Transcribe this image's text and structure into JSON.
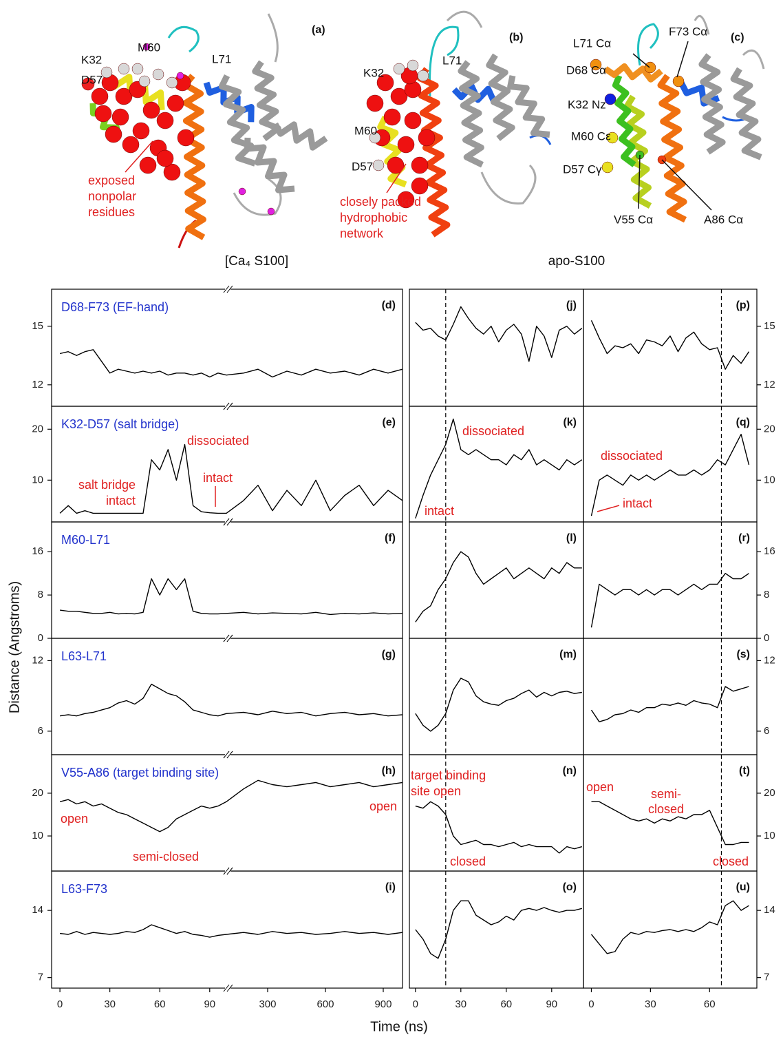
{
  "structures": {
    "panels": [
      {
        "label": "(a)",
        "residues": [
          "K32",
          "M60",
          "D57",
          "L71"
        ],
        "annotation": [
          "exposed",
          "nonpolar",
          "residues"
        ]
      },
      {
        "label": "(b)",
        "residues": [
          "K32",
          "L71",
          "M60",
          "D57"
        ],
        "annotation": [
          "closely packed",
          "hydrophobic",
          "network"
        ]
      },
      {
        "label": "(c)",
        "residues": [
          "L71 Cα",
          "F73 Cα",
          "D68 Cα",
          "K32 Nz",
          "M60 Cε",
          "D57 Cγ",
          "V55 Cα",
          "A86 Cα"
        ]
      }
    ],
    "captions": [
      "[Ca₄ S100]",
      "apo-S100"
    ]
  },
  "axis_labels": {
    "y": "Distance (Angstroms)",
    "x": "Time (ns)"
  },
  "chart_data": [
    {
      "type": "line",
      "title": "D68-F73 (EF-hand)",
      "label": "(d)",
      "color": "#000000",
      "x": [
        0,
        5,
        10,
        15,
        20,
        25,
        30,
        35,
        40,
        45,
        50,
        55,
        60,
        65,
        70,
        75,
        80,
        85,
        90,
        95,
        100,
        175,
        250,
        325,
        400,
        475,
        550,
        625,
        700,
        775,
        850,
        925,
        1000
      ],
      "values": [
        13.6,
        13.7,
        13.5,
        13.7,
        13.8,
        13.2,
        12.6,
        12.8,
        12.7,
        12.6,
        12.7,
        12.6,
        12.7,
        12.5,
        12.6,
        12.6,
        12.5,
        12.6,
        12.4,
        12.6,
        12.5,
        12.6,
        12.8,
        12.4,
        12.7,
        12.5,
        12.8,
        12.6,
        12.7,
        12.5,
        12.8,
        12.6,
        12.8
      ],
      "xlim": [
        -5,
        1000
      ],
      "xbreak": 100,
      "ylim": [
        10.9,
        16.9
      ],
      "yticks": [
        12,
        15
      ]
    },
    {
      "type": "line",
      "title": "K32-D57 (salt bridge)",
      "label": "(e)",
      "color": "#000000",
      "x": [
        0,
        5,
        10,
        15,
        20,
        25,
        30,
        35,
        40,
        45,
        50,
        55,
        60,
        65,
        70,
        75,
        80,
        85,
        90,
        95,
        100,
        175,
        250,
        325,
        400,
        475,
        550,
        625,
        700,
        775,
        850,
        925,
        1000
      ],
      "values": [
        3.5,
        5,
        3.5,
        4,
        3.5,
        3.5,
        3.5,
        3.5,
        3.5,
        3.5,
        3.5,
        14,
        12,
        16,
        10,
        17,
        5,
        3.8,
        3.6,
        3.5,
        3.5,
        6,
        9,
        4,
        8,
        5,
        10,
        4,
        7,
        9,
        5,
        8,
        6
      ],
      "xlim": [
        -5,
        1000
      ],
      "xbreak": 100,
      "ylim": [
        1.8,
        24.5
      ],
      "yticks": [
        10,
        20
      ],
      "annotations": [
        [
          "salt bridge",
          "intact"
        ],
        [
          "dissociated"
        ],
        [
          "intact"
        ]
      ]
    },
    {
      "type": "line",
      "title": "M60-L71",
      "label": "(f)",
      "color": "#000000",
      "x": [
        0,
        5,
        10,
        15,
        20,
        25,
        30,
        35,
        40,
        45,
        50,
        55,
        60,
        65,
        70,
        75,
        80,
        85,
        90,
        95,
        100,
        175,
        250,
        325,
        400,
        475,
        550,
        625,
        700,
        775,
        850,
        925,
        1000
      ],
      "values": [
        5.2,
        5,
        5,
        4.8,
        4.6,
        4.6,
        4.8,
        4.5,
        4.6,
        4.5,
        4.8,
        11,
        8,
        11,
        9,
        11,
        5,
        4.6,
        4.5,
        4.5,
        4.6,
        4.8,
        4.5,
        4.7,
        4.6,
        4.5,
        4.8,
        4.4,
        4.6,
        4.5,
        4.7,
        4.5,
        4.6
      ],
      "xlim": [
        -5,
        1000
      ],
      "xbreak": 100,
      "ylim": [
        0,
        21.5
      ],
      "yticks": [
        0,
        8,
        16
      ]
    },
    {
      "type": "line",
      "title": "L63-L71",
      "label": "(g)",
      "color": "#000000",
      "x": [
        0,
        5,
        10,
        15,
        20,
        25,
        30,
        35,
        40,
        45,
        50,
        55,
        60,
        65,
        70,
        75,
        80,
        85,
        90,
        95,
        100,
        175,
        250,
        325,
        400,
        475,
        550,
        625,
        700,
        775,
        850,
        925,
        1000
      ],
      "values": [
        7.3,
        7.4,
        7.3,
        7.5,
        7.6,
        7.8,
        8.0,
        8.4,
        8.6,
        8.3,
        8.8,
        10.0,
        9.6,
        9.2,
        9.0,
        8.5,
        7.8,
        7.6,
        7.4,
        7.3,
        7.5,
        7.6,
        7.4,
        7.7,
        7.5,
        7.6,
        7.3,
        7.5,
        7.6,
        7.4,
        7.5,
        7.3,
        7.4
      ],
      "xlim": [
        -5,
        1000
      ],
      "xbreak": 100,
      "ylim": [
        4,
        13.9
      ],
      "yticks": [
        6,
        12
      ]
    },
    {
      "type": "line",
      "title": "V55-A86 (target binding site)",
      "label": "(h)",
      "color": "#000000",
      "x": [
        0,
        5,
        10,
        15,
        20,
        25,
        30,
        35,
        40,
        45,
        50,
        55,
        60,
        65,
        70,
        75,
        80,
        85,
        90,
        95,
        100,
        175,
        250,
        325,
        400,
        475,
        550,
        625,
        700,
        775,
        850,
        925,
        1000
      ],
      "values": [
        18,
        18.5,
        17.5,
        18,
        17,
        17.5,
        16.5,
        15.5,
        15,
        14,
        13,
        12,
        11,
        12,
        14,
        15,
        16,
        17,
        16.5,
        17,
        18,
        21,
        23,
        22,
        21.5,
        22,
        22.5,
        21.5,
        22,
        22.5,
        21.5,
        22,
        22.5
      ],
      "xlim": [
        -5,
        1000
      ],
      "xbreak": 100,
      "ylim": [
        1.8,
        29
      ],
      "yticks": [
        10,
        20
      ],
      "annotations": [
        [
          "open"
        ],
        [
          "semi-closed"
        ],
        [
          "open"
        ]
      ]
    },
    {
      "type": "line",
      "title": "L63-F73",
      "label": "(i)",
      "color": "#000000",
      "x": [
        0,
        5,
        10,
        15,
        20,
        25,
        30,
        35,
        40,
        45,
        50,
        55,
        60,
        65,
        70,
        75,
        80,
        85,
        90,
        95,
        100,
        175,
        250,
        325,
        400,
        475,
        550,
        625,
        700,
        775,
        850,
        925,
        1000
      ],
      "values": [
        11.6,
        11.5,
        11.8,
        11.5,
        11.7,
        11.6,
        11.5,
        11.6,
        11.8,
        11.7,
        12.0,
        12.5,
        12.2,
        11.9,
        11.6,
        11.8,
        11.5,
        11.4,
        11.2,
        11.4,
        11.5,
        11.7,
        11.5,
        11.8,
        11.6,
        11.7,
        11.5,
        11.6,
        11.8,
        11.6,
        11.7,
        11.5,
        11.7
      ],
      "xlim": [
        -5,
        1000
      ],
      "xbreak": 100,
      "ylim": [
        5.9,
        18.1
      ],
      "yticks": [
        7,
        14
      ],
      "xticks": [
        0,
        30,
        60,
        90,
        300,
        600,
        900
      ]
    },
    {
      "type": "line",
      "label": "(j)",
      "color": "#000000",
      "marker_x": 20,
      "x": [
        0,
        5,
        10,
        15,
        20,
        25,
        30,
        35,
        40,
        45,
        50,
        55,
        60,
        65,
        70,
        75,
        80,
        85,
        90,
        95,
        100,
        105,
        110
      ],
      "values": [
        15.2,
        14.8,
        14.9,
        14.5,
        14.3,
        15.1,
        16.0,
        15.4,
        14.9,
        14.6,
        15.0,
        14.2,
        14.8,
        15.1,
        14.6,
        13.2,
        15.0,
        14.5,
        13.4,
        14.8,
        15.0,
        14.6,
        14.9
      ],
      "xlim": [
        -4,
        111
      ],
      "ylim": [
        10.9,
        16.9
      ]
    },
    {
      "type": "line",
      "label": "(k)",
      "color": "#000000",
      "marker_x": 20,
      "x": [
        0,
        5,
        10,
        15,
        20,
        25,
        30,
        35,
        40,
        45,
        50,
        55,
        60,
        65,
        70,
        75,
        80,
        85,
        90,
        95,
        100,
        105,
        110
      ],
      "values": [
        2.5,
        7,
        11,
        14,
        17,
        22,
        16,
        15,
        16,
        15,
        14,
        14,
        13,
        15,
        14,
        16,
        13,
        14,
        13,
        12,
        14,
        13,
        14
      ],
      "xlim": [
        -4,
        111
      ],
      "ylim": [
        1.8,
        24.5
      ],
      "annotations": [
        [
          "dissociated"
        ],
        [
          "intact"
        ]
      ]
    },
    {
      "type": "line",
      "label": "(l)",
      "color": "#000000",
      "marker_x": 20,
      "x": [
        0,
        5,
        10,
        15,
        20,
        25,
        30,
        35,
        40,
        45,
        50,
        55,
        60,
        65,
        70,
        75,
        80,
        85,
        90,
        95,
        100,
        105,
        110
      ],
      "values": [
        3,
        5,
        6,
        9,
        11,
        14,
        16,
        15,
        12,
        10,
        11,
        12,
        13,
        11,
        12,
        13,
        12,
        11,
        13,
        12,
        14,
        13,
        13
      ],
      "xlim": [
        -4,
        111
      ],
      "ylim": [
        0,
        21.5
      ]
    },
    {
      "type": "line",
      "label": "(m)",
      "color": "#000000",
      "marker_x": 20,
      "x": [
        0,
        5,
        10,
        15,
        20,
        25,
        30,
        35,
        40,
        45,
        50,
        55,
        60,
        65,
        70,
        75,
        80,
        85,
        90,
        95,
        100,
        105,
        110
      ],
      "values": [
        7.5,
        6.5,
        6.0,
        6.5,
        7.5,
        9.5,
        10.5,
        10.2,
        9,
        8.5,
        8.3,
        8.2,
        8.6,
        8.8,
        9.2,
        9.5,
        8.9,
        9.3,
        9,
        9.3,
        9.4,
        9.2,
        9.3
      ],
      "xlim": [
        -4,
        111
      ],
      "ylim": [
        4,
        13.9
      ]
    },
    {
      "type": "line",
      "label": "(n)",
      "color": "#000000",
      "marker_x": 20,
      "x": [
        0,
        5,
        10,
        15,
        20,
        25,
        30,
        35,
        40,
        45,
        50,
        55,
        60,
        65,
        70,
        75,
        80,
        85,
        90,
        95,
        100,
        105,
        110
      ],
      "values": [
        17,
        16.5,
        18,
        17,
        15,
        10,
        8,
        8.5,
        9,
        8,
        8,
        7.5,
        8,
        8.5,
        7.5,
        8,
        7.5,
        7.5,
        7.5,
        6,
        7.5,
        7,
        7.5
      ],
      "xlim": [
        -4,
        111
      ],
      "ylim": [
        1.8,
        29
      ],
      "annotations": [
        [
          "target binding",
          "site open"
        ],
        [
          "closed"
        ]
      ]
    },
    {
      "type": "line",
      "label": "(o)",
      "color": "#000000",
      "marker_x": 20,
      "x": [
        0,
        5,
        10,
        15,
        20,
        25,
        30,
        35,
        40,
        45,
        50,
        55,
        60,
        65,
        70,
        75,
        80,
        85,
        90,
        95,
        100,
        105,
        110
      ],
      "values": [
        12,
        11,
        9.5,
        9,
        11,
        14,
        15,
        15,
        13.5,
        13,
        12.5,
        12.8,
        13.4,
        13.0,
        14,
        14.2,
        14,
        14.3,
        14,
        13.8,
        14,
        14,
        14.2
      ],
      "xlim": [
        -4,
        111
      ],
      "ylim": [
        5.9,
        18.1
      ],
      "xticks": [
        0,
        30,
        60,
        90
      ]
    },
    {
      "type": "line",
      "label": "(p)",
      "color": "#000000",
      "marker_x": 66,
      "x": [
        0,
        4,
        8,
        12,
        16,
        20,
        24,
        28,
        32,
        36,
        40,
        44,
        48,
        52,
        56,
        60,
        64,
        68,
        72,
        76,
        80
      ],
      "values": [
        15.3,
        14.4,
        13.6,
        14.0,
        13.9,
        14.1,
        13.6,
        14.3,
        14.2,
        14.0,
        14.5,
        13.7,
        14.4,
        14.7,
        14.1,
        13.8,
        13.9,
        12.8,
        13.5,
        13.1,
        13.7
      ],
      "xlim": [
        -4,
        84
      ],
      "ylim": [
        10.9,
        16.9
      ],
      "yticks": [
        12,
        15
      ]
    },
    {
      "type": "line",
      "label": "(q)",
      "color": "#000000",
      "marker_x": 66,
      "x": [
        0,
        4,
        8,
        12,
        16,
        20,
        24,
        28,
        32,
        36,
        40,
        44,
        48,
        52,
        56,
        60,
        64,
        68,
        72,
        76,
        80
      ],
      "values": [
        3,
        10,
        11,
        10,
        9,
        11,
        10,
        11,
        10,
        11,
        12,
        11,
        11,
        12,
        11,
        12,
        14,
        13,
        16,
        19,
        13
      ],
      "xlim": [
        -4,
        84
      ],
      "ylim": [
        1.8,
        24.5
      ],
      "yticks": [
        10,
        20
      ],
      "annotations": [
        [
          "dissociated"
        ],
        [
          "intact"
        ]
      ]
    },
    {
      "type": "line",
      "label": "(r)",
      "color": "#000000",
      "marker_x": 66,
      "x": [
        0,
        4,
        8,
        12,
        16,
        20,
        24,
        28,
        32,
        36,
        40,
        44,
        48,
        52,
        56,
        60,
        64,
        68,
        72,
        76,
        80
      ],
      "values": [
        2,
        10,
        9,
        8,
        9,
        9,
        8,
        9,
        8,
        9,
        9,
        8,
        9,
        10,
        9,
        10,
        10,
        12,
        11,
        11,
        12
      ],
      "xlim": [
        -4,
        84
      ],
      "ylim": [
        0,
        21.5
      ],
      "yticks": [
        0,
        8,
        16
      ]
    },
    {
      "type": "line",
      "label": "(s)",
      "color": "#000000",
      "marker_x": 66,
      "x": [
        0,
        4,
        8,
        12,
        16,
        20,
        24,
        28,
        32,
        36,
        40,
        44,
        48,
        52,
        56,
        60,
        64,
        68,
        72,
        76,
        80
      ],
      "values": [
        7.8,
        6.8,
        7.0,
        7.4,
        7.5,
        7.8,
        7.6,
        8.0,
        8.0,
        8.3,
        8.2,
        8.4,
        8.2,
        8.6,
        8.4,
        8.3,
        8.0,
        9.8,
        9.4,
        9.6,
        9.8
      ],
      "xlim": [
        -4,
        84
      ],
      "ylim": [
        4,
        13.9
      ],
      "yticks": [
        6,
        12
      ]
    },
    {
      "type": "line",
      "label": "(t)",
      "color": "#000000",
      "marker_x": 66,
      "x": [
        0,
        4,
        8,
        12,
        16,
        20,
        24,
        28,
        32,
        36,
        40,
        44,
        48,
        52,
        56,
        60,
        64,
        68,
        72,
        76,
        80
      ],
      "values": [
        18,
        18,
        17,
        16,
        15,
        14,
        13.5,
        14,
        13,
        14,
        13.5,
        14.5,
        14,
        15,
        15,
        16,
        12,
        8,
        8,
        8.5,
        8.5
      ],
      "xlim": [
        -4,
        84
      ],
      "ylim": [
        1.8,
        29
      ],
      "yticks": [
        10,
        20
      ],
      "annotations": [
        [
          "open"
        ],
        [
          "semi-",
          "closed"
        ],
        [
          "closed"
        ]
      ]
    },
    {
      "type": "line",
      "label": "(u)",
      "color": "#000000",
      "marker_x": 66,
      "x": [
        0,
        4,
        8,
        12,
        16,
        20,
        24,
        28,
        32,
        36,
        40,
        44,
        48,
        52,
        56,
        60,
        64,
        68,
        72,
        76,
        80
      ],
      "values": [
        11.5,
        10.5,
        9.5,
        9.7,
        11,
        11.7,
        11.5,
        11.8,
        11.7,
        11.9,
        12,
        11.8,
        12.0,
        11.8,
        12.2,
        12.8,
        12.5,
        14.5,
        15,
        14,
        14.5
      ],
      "xlim": [
        -4,
        84
      ],
      "ylim": [
        5.9,
        18.1
      ],
      "yticks": [
        7,
        14
      ],
      "xticks": [
        0,
        30,
        60
      ]
    }
  ]
}
